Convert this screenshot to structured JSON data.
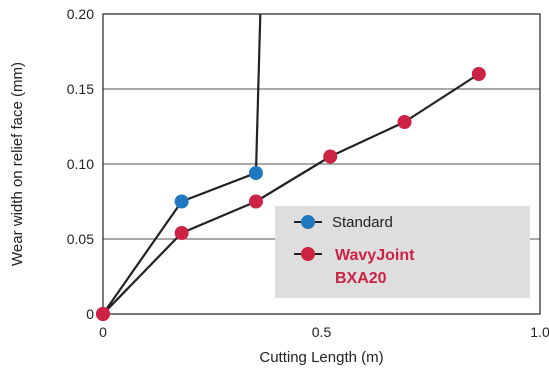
{
  "chart_data": {
    "type": "line",
    "xlabel": "Cutting Length (m)",
    "ylabel": "Wear width on relief face (mm)",
    "xlim": [
      0,
      1.0
    ],
    "ylim": [
      0,
      0.2
    ],
    "x_ticks": [
      "0",
      "0.5",
      "1.0"
    ],
    "y_ticks": [
      "0",
      "0.05",
      "0.10",
      "0.15",
      "0.20"
    ],
    "grid": "horizontal",
    "legend_position": "lower-right",
    "series": [
      {
        "name": "Standard",
        "color": "#1f78c0",
        "points": [
          [
            0,
            0
          ],
          [
            0.18,
            0.075
          ],
          [
            0.35,
            0.094
          ]
        ],
        "tail": [
          [
            0.35,
            0.094
          ],
          [
            0.36,
            0.2
          ]
        ]
      },
      {
        "name_lines": [
          "WavyJoint",
          "BXA20"
        ],
        "color": "#cc2244",
        "points": [
          [
            0,
            0
          ],
          [
            0.18,
            0.054
          ],
          [
            0.35,
            0.075
          ],
          [
            0.52,
            0.105
          ],
          [
            0.69,
            0.128
          ],
          [
            0.86,
            0.16
          ]
        ]
      }
    ]
  }
}
